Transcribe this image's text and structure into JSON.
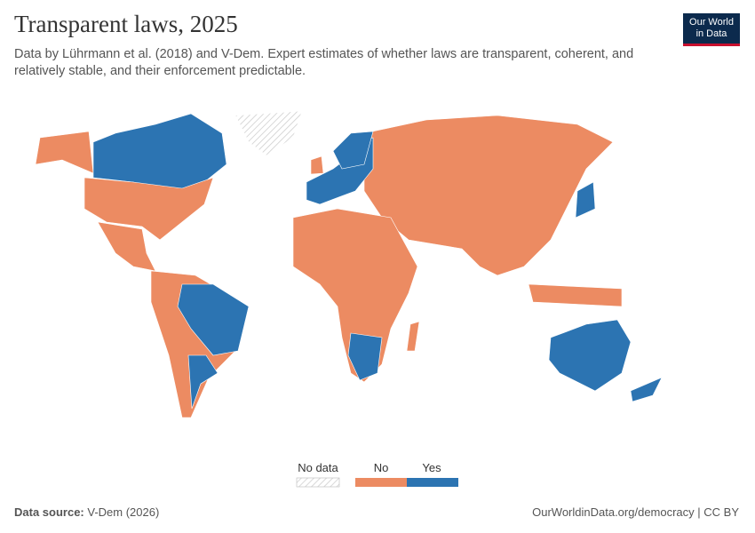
{
  "header": {
    "title": "Transparent laws, 2025",
    "subtitle": "Data by Lührmann et al. (2018) and V-Dem. Expert estimates of whether laws are transparent, coherent, and relatively stable, and their enforcement predictable."
  },
  "logo": {
    "line1": "Our World",
    "line2": "in Data"
  },
  "legend": {
    "items": [
      {
        "label": "No data",
        "color": "#dddddd"
      },
      {
        "label": "No",
        "color": "#ec8b62"
      },
      {
        "label": "Yes",
        "color": "#2c74b2"
      }
    ]
  },
  "footer": {
    "source_label": "Data source:",
    "source": "V-Dem (2026)",
    "url": "OurWorldinData.org/democracy | CC BY"
  }
}
